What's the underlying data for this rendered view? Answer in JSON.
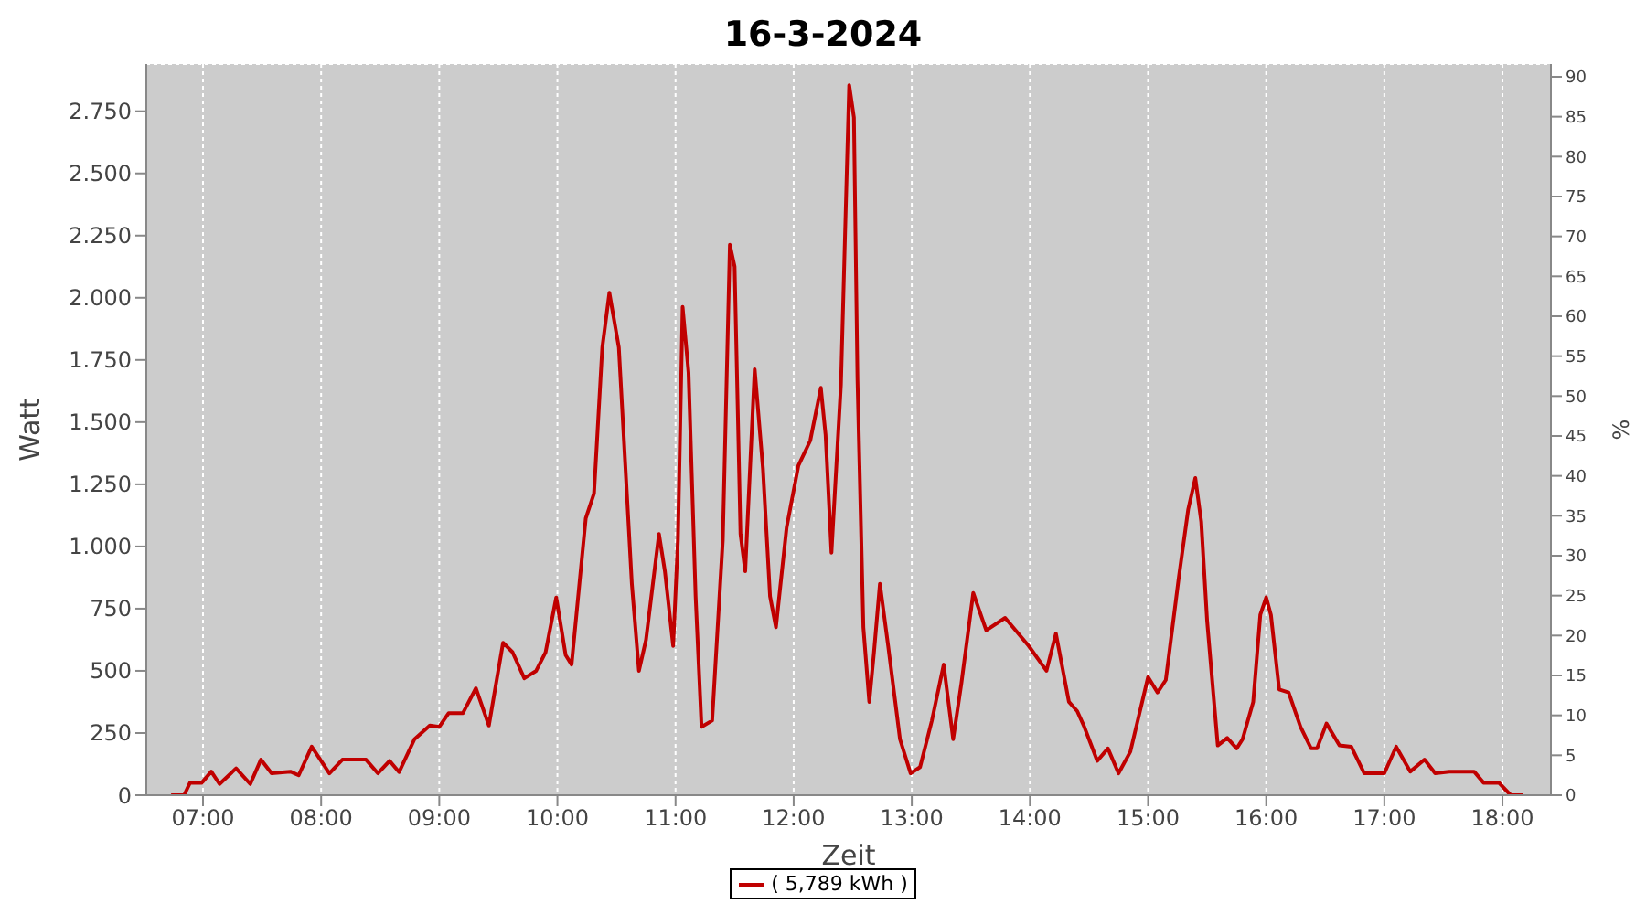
{
  "chart_data": {
    "type": "line",
    "title": "16-3-2024",
    "xlabel": "Zeit",
    "ylabel": "Watt",
    "y2label": "%",
    "x": [
      6.73,
      6.84,
      6.89,
      6.99,
      7.07,
      7.14,
      7.28,
      7.4,
      7.49,
      7.58,
      7.74,
      7.81,
      7.92,
      8.07,
      8.18,
      8.38,
      8.48,
      8.58,
      8.66,
      8.79,
      8.92,
      9.0,
      9.08,
      9.2,
      9.31,
      9.42,
      9.54,
      9.62,
      9.72,
      9.82,
      9.9,
      9.99,
      10.07,
      10.12,
      10.24,
      10.31,
      10.38,
      10.44,
      10.52,
      10.63,
      10.69,
      10.75,
      10.86,
      10.91,
      10.98,
      11.02,
      11.06,
      11.11,
      11.17,
      11.22,
      11.31,
      11.4,
      11.46,
      11.5,
      11.55,
      11.59,
      11.67,
      11.74,
      11.8,
      11.85,
      11.94,
      12.04,
      12.14,
      12.23,
      12.27,
      12.32,
      12.4,
      12.45,
      12.47,
      12.51,
      12.54,
      12.59,
      12.64,
      12.68,
      12.73,
      12.8,
      12.9,
      12.99,
      13.07,
      13.17,
      13.27,
      13.35,
      13.42,
      13.52,
      13.63,
      13.79,
      13.99,
      14.14,
      14.22,
      14.33,
      14.4,
      14.46,
      14.57,
      14.66,
      14.75,
      14.85,
      15.0,
      15.08,
      15.15,
      15.26,
      15.34,
      15.4,
      15.45,
      15.5,
      15.59,
      15.67,
      15.75,
      15.8,
      15.89,
      15.95,
      16.0,
      16.04,
      16.11,
      16.19,
      16.29,
      16.38,
      16.43,
      16.51,
      16.62,
      16.72,
      16.83,
      17.0,
      17.1,
      17.22,
      17.34,
      17.43,
      17.55,
      17.76,
      17.84,
      17.97,
      18.07,
      18.17
    ],
    "series": [
      {
        "name": "( 5,789 kWh )",
        "color": "#c00000",
        "values": [
          0,
          0,
          50,
          50,
          95,
          45,
          108,
          45,
          143,
          88,
          95,
          80,
          195,
          88,
          143,
          143,
          88,
          138,
          93,
          225,
          280,
          275,
          330,
          330,
          430,
          280,
          613,
          575,
          470,
          500,
          575,
          795,
          563,
          525,
          1113,
          1213,
          1800,
          2020,
          1800,
          850,
          500,
          625,
          1050,
          900,
          600,
          1025,
          1963,
          1700,
          800,
          275,
          300,
          1025,
          2213,
          2125,
          1050,
          900,
          1713,
          1313,
          800,
          675,
          1075,
          1325,
          1425,
          1638,
          1450,
          975,
          1650,
          2513,
          2855,
          2725,
          1675,
          675,
          375,
          575,
          850,
          600,
          225,
          88,
          113,
          300,
          525,
          225,
          450,
          813,
          663,
          713,
          600,
          500,
          650,
          375,
          338,
          275,
          138,
          188,
          88,
          175,
          475,
          413,
          463,
          875,
          1150,
          1275,
          1100,
          700,
          200,
          230,
          188,
          225,
          375,
          725,
          795,
          725,
          425,
          413,
          275,
          188,
          188,
          288,
          200,
          195,
          88,
          88,
          195,
          95,
          143,
          88,
          95,
          95,
          50,
          50,
          0,
          0
        ]
      }
    ],
    "xlim": [
      6.52,
      18.41
    ],
    "xticks": [
      {
        "value": 7,
        "label": "07:00"
      },
      {
        "value": 8,
        "label": "08:00"
      },
      {
        "value": 9,
        "label": "09:00"
      },
      {
        "value": 10,
        "label": "10:00"
      },
      {
        "value": 11,
        "label": "11:00"
      },
      {
        "value": 12,
        "label": "12:00"
      },
      {
        "value": 13,
        "label": "13:00"
      },
      {
        "value": 14,
        "label": "14:00"
      },
      {
        "value": 15,
        "label": "15:00"
      },
      {
        "value": 16,
        "label": "16:00"
      },
      {
        "value": 17,
        "label": "17:00"
      },
      {
        "value": 18,
        "label": "18:00"
      }
    ],
    "ylim": [
      0,
      2940
    ],
    "yticks": [
      0,
      250,
      500,
      750,
      {
        "value": 1000,
        "label": "1.000"
      },
      {
        "value": 1250,
        "label": "1.250"
      },
      {
        "value": 1500,
        "label": "1.500"
      },
      {
        "value": 1750,
        "label": "1.750"
      },
      {
        "value": 2000,
        "label": "2.000"
      },
      {
        "value": 2250,
        "label": "2.250"
      },
      {
        "value": 2500,
        "label": "2.500"
      },
      {
        "value": 2750,
        "label": "2.750"
      }
    ],
    "y2lim": [
      0,
      91.6
    ],
    "y2ticks": [
      0,
      5,
      10,
      15,
      20,
      25,
      30,
      35,
      40,
      45,
      50,
      55,
      60,
      65,
      70,
      75,
      80,
      85,
      90
    ],
    "grid": true,
    "legend": "bottom",
    "marker": "none",
    "line_style": "solid"
  }
}
